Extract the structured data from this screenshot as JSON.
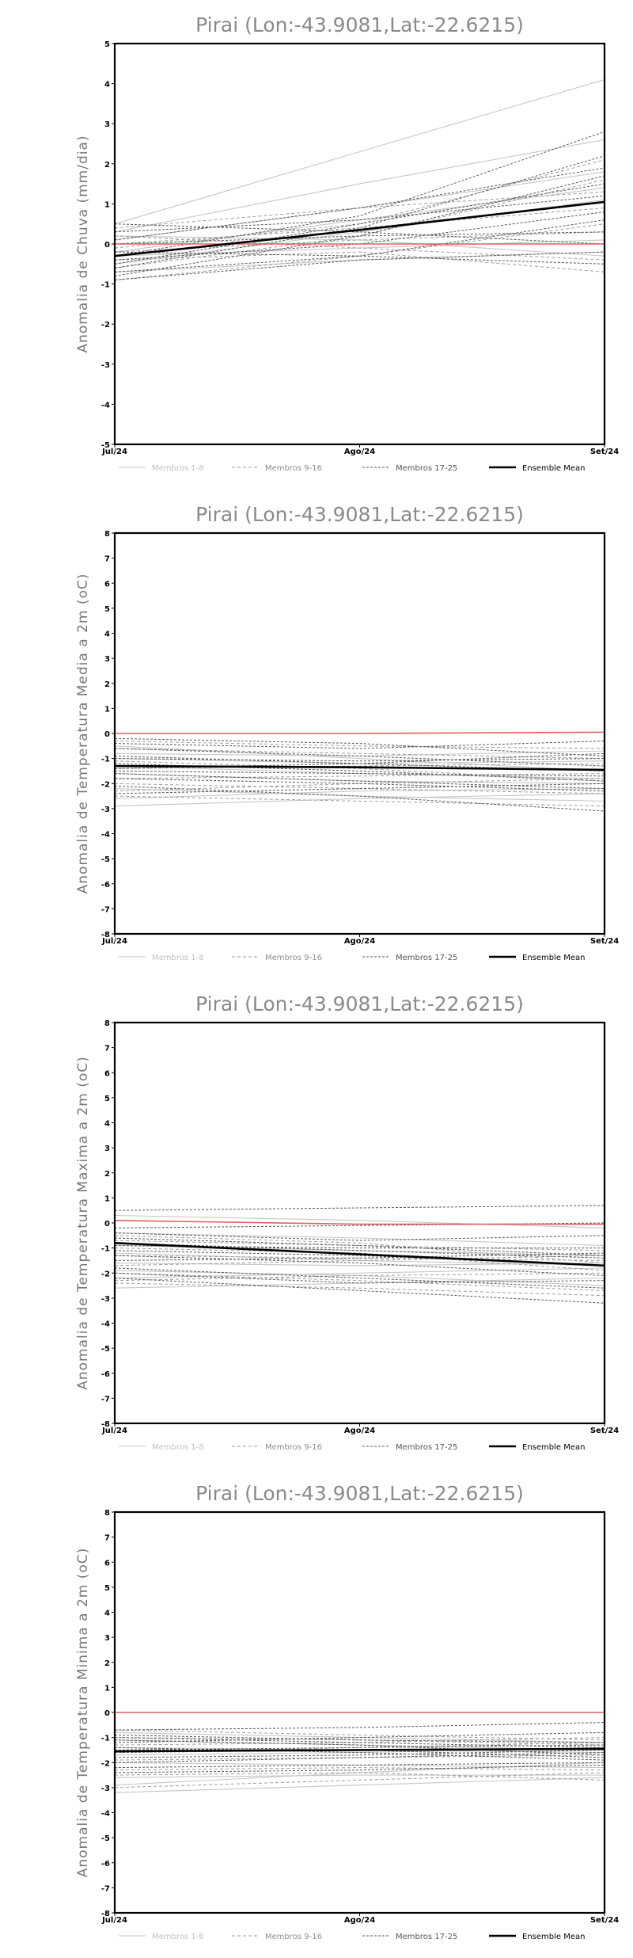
{
  "chart_data": [
    {
      "type": "line",
      "title": "Pirai (Lon:-43.9081,Lat:-22.6215)",
      "xlabel": "",
      "ylabel": "Anomalia de Chuva (mm/dia)",
      "x": [
        "Jul/24",
        "Ago/24",
        "Set/24"
      ],
      "ylim": [
        -5,
        5
      ],
      "yticks": [
        -5,
        -4,
        -3,
        -2,
        -1,
        0,
        1,
        2,
        3,
        4,
        5
      ],
      "reference_line": 0,
      "legend": [
        "Membros 1-8",
        "Membros 9-16",
        "Membros 17-25",
        "Ensemble Mean"
      ],
      "legend_position": "bottom",
      "colors": {
        "members_1_8": "#c8c8c8",
        "members_9_16": "#9a9a9a",
        "members_17_25": "#555555",
        "mean": "#000000",
        "reference": "#e06060"
      },
      "series": [
        {
          "group": 1,
          "values": [
            0.5,
            2.3,
            4.1
          ]
        },
        {
          "group": 1,
          "values": [
            0.3,
            1.5,
            2.6
          ]
        },
        {
          "group": 1,
          "values": [
            0.1,
            0.9,
            1.8
          ]
        },
        {
          "group": 1,
          "values": [
            -0.2,
            0.6,
            1.4
          ]
        },
        {
          "group": 1,
          "values": [
            -0.5,
            0.3,
            1.1
          ]
        },
        {
          "group": 1,
          "values": [
            -0.3,
            -0.1,
            0.1
          ]
        },
        {
          "group": 1,
          "values": [
            -0.7,
            -0.4,
            -0.2
          ]
        },
        {
          "group": 1,
          "values": [
            0.2,
            0.1,
            -0.3
          ]
        },
        {
          "group": 2,
          "values": [
            -0.1,
            0.5,
            2.1
          ]
        },
        {
          "group": 2,
          "values": [
            -0.6,
            0.2,
            1.6
          ]
        },
        {
          "group": 2,
          "values": [
            0.4,
            0.9,
            1.3
          ]
        },
        {
          "group": 2,
          "values": [
            -0.4,
            -0.2,
            -0.7
          ]
        },
        {
          "group": 2,
          "values": [
            0.0,
            0.4,
            0.9
          ]
        },
        {
          "group": 2,
          "values": [
            -0.9,
            -0.3,
            0.5
          ]
        },
        {
          "group": 2,
          "values": [
            0.2,
            -0.1,
            -0.4
          ]
        },
        {
          "group": 2,
          "values": [
            -0.2,
            0.1,
            0.3
          ]
        },
        {
          "group": 3,
          "values": [
            -0.3,
            0.7,
            2.8
          ]
        },
        {
          "group": 3,
          "values": [
            -0.6,
            0.4,
            2.2
          ]
        },
        {
          "group": 3,
          "values": [
            0.1,
            0.9,
            1.9
          ]
        },
        {
          "group": 3,
          "values": [
            -0.8,
            0.2,
            1.7
          ]
        },
        {
          "group": 3,
          "values": [
            -0.5,
            0.5,
            1.5
          ]
        },
        {
          "group": 3,
          "values": [
            0.3,
            0.6,
            1.2
          ]
        },
        {
          "group": 3,
          "values": [
            -0.4,
            0.0,
            0.8
          ]
        },
        {
          "group": 3,
          "values": [
            -0.7,
            -0.3,
            0.6
          ]
        },
        {
          "group": 3,
          "values": [
            0.0,
            0.2,
            0.3
          ]
        },
        {
          "group": 3,
          "values": [
            -0.9,
            -0.4,
            -0.2
          ]
        },
        {
          "group": 3,
          "values": [
            -0.2,
            -0.3,
            -0.5
          ]
        },
        {
          "group": 3,
          "values": [
            0.5,
            0.3,
            0.0
          ]
        },
        {
          "group": "mean",
          "values": [
            -0.3,
            0.35,
            1.05
          ]
        },
        {
          "group": "ref",
          "values": [
            0.0,
            0.0,
            0.0
          ]
        }
      ]
    },
    {
      "type": "line",
      "title": "Pirai (Lon:-43.9081,Lat:-22.6215)",
      "xlabel": "",
      "ylabel": "Anomalia de Temperatura Media a 2m (oC)",
      "x": [
        "Jul/24",
        "Ago/24",
        "Set/24"
      ],
      "ylim": [
        -8,
        8
      ],
      "yticks": [
        -8,
        -7,
        -6,
        -5,
        -4,
        -3,
        -2,
        -1,
        0,
        1,
        2,
        3,
        4,
        5,
        6,
        7,
        8
      ],
      "reference_line": 0,
      "legend": [
        "Membros 1-8",
        "Membros 9-16",
        "Membros 17-25",
        "Ensemble Mean"
      ],
      "legend_position": "bottom",
      "series": [
        {
          "group": 1,
          "values": [
            -2.9,
            -2.6,
            -2.4
          ]
        },
        {
          "group": 1,
          "values": [
            -2.2,
            -2.5,
            -2.7
          ]
        },
        {
          "group": 1,
          "values": [
            -1.6,
            -1.9,
            -2.0
          ]
        },
        {
          "group": 1,
          "values": [
            -0.5,
            -1.0,
            -1.5
          ]
        },
        {
          "group": 1,
          "values": [
            -1.0,
            -1.2,
            -1.1
          ]
        },
        {
          "group": 1,
          "values": [
            -2.6,
            -2.3,
            -2.2
          ]
        },
        {
          "group": 1,
          "values": [
            -1.3,
            -1.6,
            -1.8
          ]
        },
        {
          "group": 1,
          "values": [
            -0.8,
            -0.9,
            -0.7
          ]
        },
        {
          "group": 2,
          "values": [
            -2.0,
            -2.2,
            -2.4
          ]
        },
        {
          "group": 2,
          "values": [
            -1.4,
            -1.3,
            -1.2
          ]
        },
        {
          "group": 2,
          "values": [
            -0.6,
            -0.8,
            -1.0
          ]
        },
        {
          "group": 2,
          "values": [
            -2.5,
            -2.7,
            -2.9
          ]
        },
        {
          "group": 2,
          "values": [
            -1.8,
            -1.7,
            -1.6
          ]
        },
        {
          "group": 2,
          "values": [
            -1.1,
            -1.4,
            -1.9
          ]
        },
        {
          "group": 2,
          "values": [
            -0.3,
            -0.5,
            -0.6
          ]
        },
        {
          "group": 2,
          "values": [
            -2.3,
            -2.0,
            -1.8
          ]
        },
        {
          "group": 3,
          "values": [
            -0.4,
            -0.6,
            -0.3
          ]
        },
        {
          "group": 3,
          "values": [
            -0.9,
            -1.2,
            -1.5
          ]
        },
        {
          "group": 3,
          "values": [
            -1.2,
            -1.5,
            -1.9
          ]
        },
        {
          "group": 3,
          "values": [
            -1.6,
            -1.9,
            -2.2
          ]
        },
        {
          "group": 3,
          "values": [
            -2.1,
            -2.5,
            -3.1
          ]
        },
        {
          "group": 3,
          "values": [
            -0.6,
            -0.9,
            -1.3
          ]
        },
        {
          "group": 3,
          "values": [
            -1.0,
            -1.1,
            -1.0
          ]
        },
        {
          "group": 3,
          "values": [
            -1.4,
            -1.2,
            -0.8
          ]
        },
        {
          "group": 3,
          "values": [
            -1.8,
            -2.0,
            -2.3
          ]
        },
        {
          "group": 3,
          "values": [
            -2.4,
            -2.2,
            -2.0
          ]
        },
        {
          "group": 3,
          "values": [
            -1.5,
            -1.6,
            -1.7
          ]
        },
        {
          "group": 3,
          "values": [
            -0.2,
            -0.4,
            -0.9
          ]
        },
        {
          "group": "mean",
          "values": [
            -1.3,
            -1.35,
            -1.45
          ]
        },
        {
          "group": "ref",
          "values": [
            0.0,
            0.0,
            0.05
          ]
        }
      ]
    },
    {
      "type": "line",
      "title": "Pirai (Lon:-43.9081,Lat:-22.6215)",
      "xlabel": "",
      "ylabel": "Anomalia de Temperatura Maxima a 2m (oC)",
      "x": [
        "Jul/24",
        "Ago/24",
        "Set/24"
      ],
      "ylim": [
        -8,
        8
      ],
      "yticks": [
        -8,
        -7,
        -6,
        -5,
        -4,
        -3,
        -2,
        -1,
        0,
        1,
        2,
        3,
        4,
        5,
        6,
        7,
        8
      ],
      "reference_line": 0,
      "legend": [
        "Membros 1-8",
        "Membros 9-16",
        "Membros 17-25",
        "Ensemble Mean"
      ],
      "legend_position": "bottom",
      "series": [
        {
          "group": 1,
          "values": [
            -2.6,
            -2.4,
            -2.2
          ]
        },
        {
          "group": 1,
          "values": [
            -1.9,
            -2.1,
            -2.5
          ]
        },
        {
          "group": 1,
          "values": [
            -1.2,
            -1.5,
            -1.7
          ]
        },
        {
          "group": 1,
          "values": [
            -0.4,
            -0.6,
            -0.9
          ]
        },
        {
          "group": 1,
          "values": [
            -2.2,
            -2.0,
            -1.8
          ]
        },
        {
          "group": 1,
          "values": [
            -0.9,
            -1.1,
            -1.3
          ]
        },
        {
          "group": 1,
          "values": [
            0.3,
            0.1,
            -0.2
          ]
        },
        {
          "group": 1,
          "values": [
            -1.6,
            -1.7,
            -1.6
          ]
        },
        {
          "group": 2,
          "values": [
            -2.0,
            -2.3,
            -2.7
          ]
        },
        {
          "group": 2,
          "values": [
            -1.3,
            -1.4,
            -1.5
          ]
        },
        {
          "group": 2,
          "values": [
            -0.7,
            -0.9,
            -1.1
          ]
        },
        {
          "group": 2,
          "values": [
            -2.4,
            -2.6,
            -2.9
          ]
        },
        {
          "group": 2,
          "values": [
            -1.7,
            -1.5,
            -1.3
          ]
        },
        {
          "group": 2,
          "values": [
            -0.5,
            -0.8,
            -1.6
          ]
        },
        {
          "group": 2,
          "values": [
            -1.0,
            -1.2,
            -1.9
          ]
        },
        {
          "group": 2,
          "values": [
            -2.3,
            -2.1,
            -2.0
          ]
        },
        {
          "group": 3,
          "values": [
            0.5,
            0.6,
            0.7
          ]
        },
        {
          "group": 3,
          "values": [
            -0.2,
            -0.1,
            0.0
          ]
        },
        {
          "group": 3,
          "values": [
            -0.8,
            -1.1,
            -1.4
          ]
        },
        {
          "group": 3,
          "values": [
            -1.8,
            -2.2,
            -2.6
          ]
        },
        {
          "group": 3,
          "values": [
            -2.2,
            -2.7,
            -3.2
          ]
        },
        {
          "group": 3,
          "values": [
            -0.6,
            -0.9,
            -1.3
          ]
        },
        {
          "group": 3,
          "values": [
            -1.3,
            -1.6,
            -2.1
          ]
        },
        {
          "group": 3,
          "values": [
            -0.4,
            -0.7,
            -0.5
          ]
        },
        {
          "group": 3,
          "values": [
            -1.5,
            -1.4,
            -1.2
          ]
        },
        {
          "group": 3,
          "values": [
            -2.0,
            -2.4,
            -2.3
          ]
        },
        {
          "group": 3,
          "values": [
            -0.9,
            -1.0,
            -1.0
          ]
        },
        {
          "group": 3,
          "values": [
            -1.1,
            -1.3,
            -1.7
          ]
        },
        {
          "group": "mean",
          "values": [
            -0.8,
            -1.25,
            -1.7
          ]
        },
        {
          "group": "ref",
          "values": [
            0.1,
            -0.05,
            -0.05
          ]
        }
      ]
    },
    {
      "type": "line",
      "title": "Pirai (Lon:-43.9081,Lat:-22.6215)",
      "xlabel": "",
      "ylabel": "Anomalia de Temperatura Minima a 2m (oC)",
      "x": [
        "Jul/24",
        "Ago/24",
        "Set/24"
      ],
      "ylim": [
        -8,
        8
      ],
      "yticks": [
        -8,
        -7,
        -6,
        -5,
        -4,
        -3,
        -2,
        -1,
        0,
        1,
        2,
        3,
        4,
        5,
        6,
        7,
        8
      ],
      "reference_line": 0,
      "legend": [
        "Membros 1-8",
        "Membros 9-16",
        "Membros 17-25",
        "Ensemble Mean"
      ],
      "legend_position": "bottom",
      "series": [
        {
          "group": 1,
          "values": [
            -3.2,
            -2.9,
            -2.6
          ]
        },
        {
          "group": 1,
          "values": [
            -2.6,
            -2.5,
            -2.5
          ]
        },
        {
          "group": 1,
          "values": [
            -2.0,
            -2.1,
            -2.2
          ]
        },
        {
          "group": 1,
          "values": [
            -1.4,
            -1.5,
            -1.6
          ]
        },
        {
          "group": 1,
          "values": [
            -0.8,
            -1.0,
            -1.2
          ]
        },
        {
          "group": 1,
          "values": [
            -2.9,
            -2.4,
            -2.0
          ]
        },
        {
          "group": 1,
          "values": [
            -1.1,
            -1.3,
            -1.5
          ]
        },
        {
          "group": 1,
          "values": [
            -1.7,
            -1.6,
            -1.4
          ]
        },
        {
          "group": 2,
          "values": [
            -3.0,
            -2.7,
            -2.4
          ]
        },
        {
          "group": 2,
          "values": [
            -2.3,
            -2.2,
            -2.3
          ]
        },
        {
          "group": 2,
          "values": [
            -1.6,
            -1.4,
            -1.2
          ]
        },
        {
          "group": 2,
          "values": [
            -1.0,
            -1.1,
            -1.3
          ]
        },
        {
          "group": 2,
          "values": [
            -2.5,
            -2.4,
            -2.7
          ]
        },
        {
          "group": 2,
          "values": [
            -1.9,
            -1.8,
            -1.7
          ]
        },
        {
          "group": 2,
          "values": [
            -1.3,
            -1.2,
            -1.0
          ]
        },
        {
          "group": 2,
          "values": [
            -0.7,
            -0.9,
            -1.1
          ]
        },
        {
          "group": 3,
          "values": [
            -0.7,
            -0.6,
            -0.4
          ]
        },
        {
          "group": 3,
          "values": [
            -1.2,
            -1.0,
            -0.8
          ]
        },
        {
          "group": 3,
          "values": [
            -1.5,
            -1.4,
            -1.3
          ]
        },
        {
          "group": 3,
          "values": [
            -1.8,
            -1.7,
            -1.5
          ]
        },
        {
          "group": 3,
          "values": [
            -2.2,
            -2.1,
            -2.0
          ]
        },
        {
          "group": 3,
          "values": [
            -1.0,
            -1.2,
            -1.4
          ]
        },
        {
          "group": 3,
          "values": [
            -1.4,
            -1.6,
            -1.9
          ]
        },
        {
          "group": 3,
          "values": [
            -2.0,
            -1.8,
            -1.6
          ]
        },
        {
          "group": 3,
          "values": [
            -0.9,
            -1.1,
            -1.2
          ]
        },
        {
          "group": 3,
          "values": [
            -2.4,
            -2.3,
            -2.1
          ]
        },
        {
          "group": 3,
          "values": [
            -1.6,
            -1.5,
            -1.8
          ]
        },
        {
          "group": 3,
          "values": [
            -1.1,
            -1.3,
            -1.7
          ]
        },
        {
          "group": "mean",
          "values": [
            -1.55,
            -1.5,
            -1.45
          ]
        },
        {
          "group": "ref",
          "values": [
            0.0,
            0.0,
            0.0
          ]
        }
      ]
    }
  ]
}
